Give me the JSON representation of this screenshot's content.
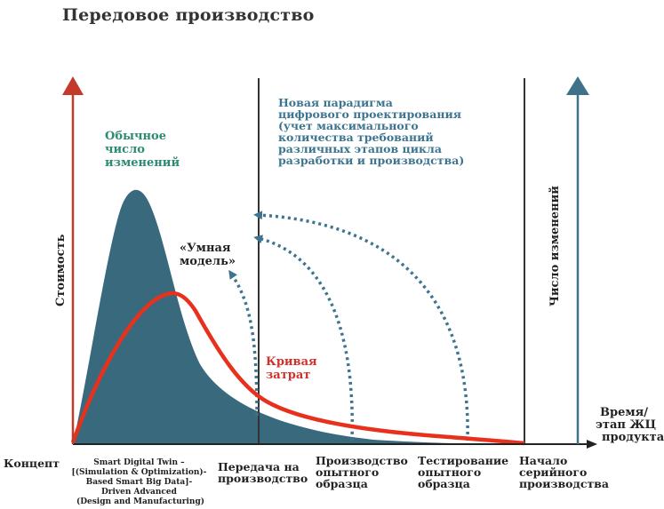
{
  "title": "Передовое производство",
  "colors": {
    "area": "#39697d",
    "cost_curve": "#e8311c",
    "arrow_red": "#c43a2a",
    "arrow_teal": "#3f7288",
    "text_green": "#2e8b73",
    "text_blue": "#3d7590",
    "text_red": "#d0312a",
    "axis": "#222222"
  },
  "axes": {
    "y_left_label": "Стоимость",
    "y_right_label": "Число изменений",
    "x_label_lines": [
      "Время/",
      "этап ЖЦ",
      "продукта"
    ]
  },
  "annotations": {
    "usual_changes": [
      "Обычное",
      "число",
      "изменений"
    ],
    "new_paradigm": [
      "Новая парадигма",
      "цифрового проектирования",
      "(учет максимального",
      "количества требований",
      "различных этапов цикла",
      "разработки и производства)"
    ],
    "smart_model": [
      "«Умная",
      "модель»"
    ],
    "cost_curve": [
      "Кривая",
      "затрат"
    ]
  },
  "x_stages": {
    "concept": "Концепт",
    "smart_twin": [
      "Smart Digital Twin –",
      "[(Simulation & Optimization)-",
      "Based Smart Big Data]-",
      "Driven Advanced",
      "(Design and Manufacturing)"
    ],
    "transfer": [
      "Передача на",
      "производство"
    ],
    "prototype_production": [
      "Производство",
      "опытного",
      "образца"
    ],
    "prototype_testing": [
      "Тестирование",
      "опытного",
      "образца"
    ],
    "serial_start": [
      "Начало",
      "серийного",
      "производства"
    ]
  }
}
